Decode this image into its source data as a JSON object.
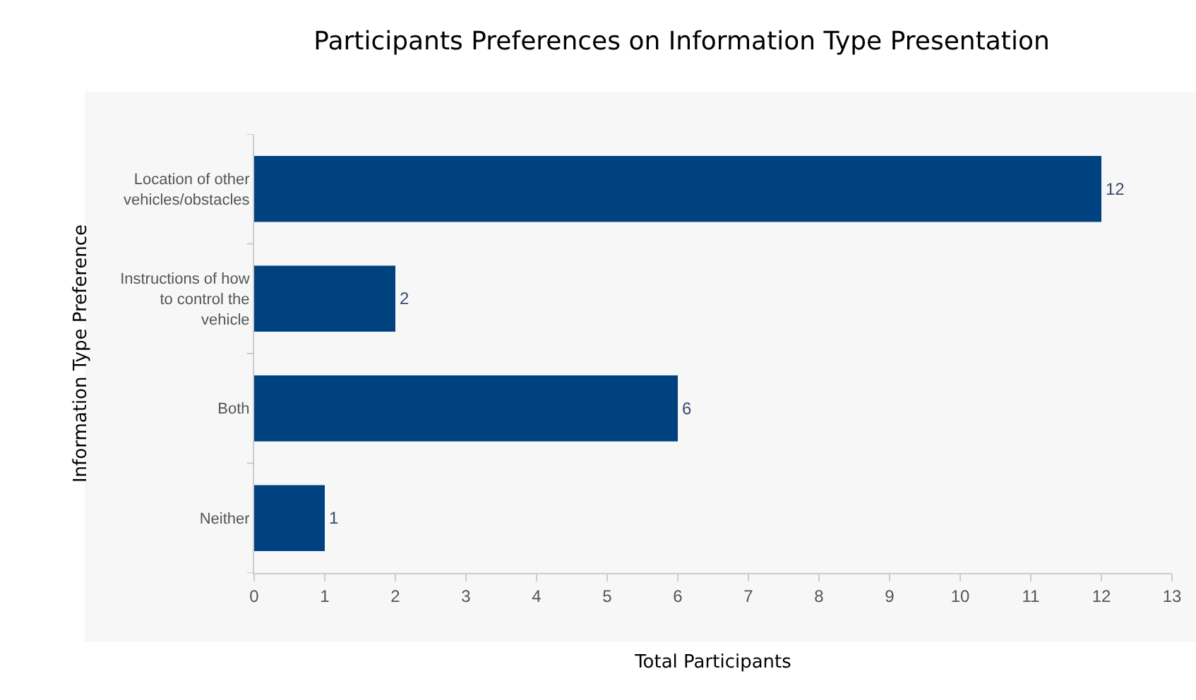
{
  "chart_data": {
    "type": "bar",
    "orientation": "horizontal",
    "title": "Participants Preferences on Information Type Presentation",
    "xlabel": "Total Participants",
    "ylabel": "Information Type Preference",
    "categories": [
      "Location of other vehicles/obstacles",
      "Instructions of how to control the vehicle",
      "Both",
      "Neither"
    ],
    "values": [
      12,
      2,
      6,
      1
    ],
    "color": "#00427f",
    "data_labels": true,
    "xlim": [
      0,
      13
    ],
    "xticks": [
      0,
      1,
      2,
      3,
      4,
      5,
      6,
      7,
      8,
      9,
      10,
      11,
      12,
      13
    ],
    "grid": false
  }
}
